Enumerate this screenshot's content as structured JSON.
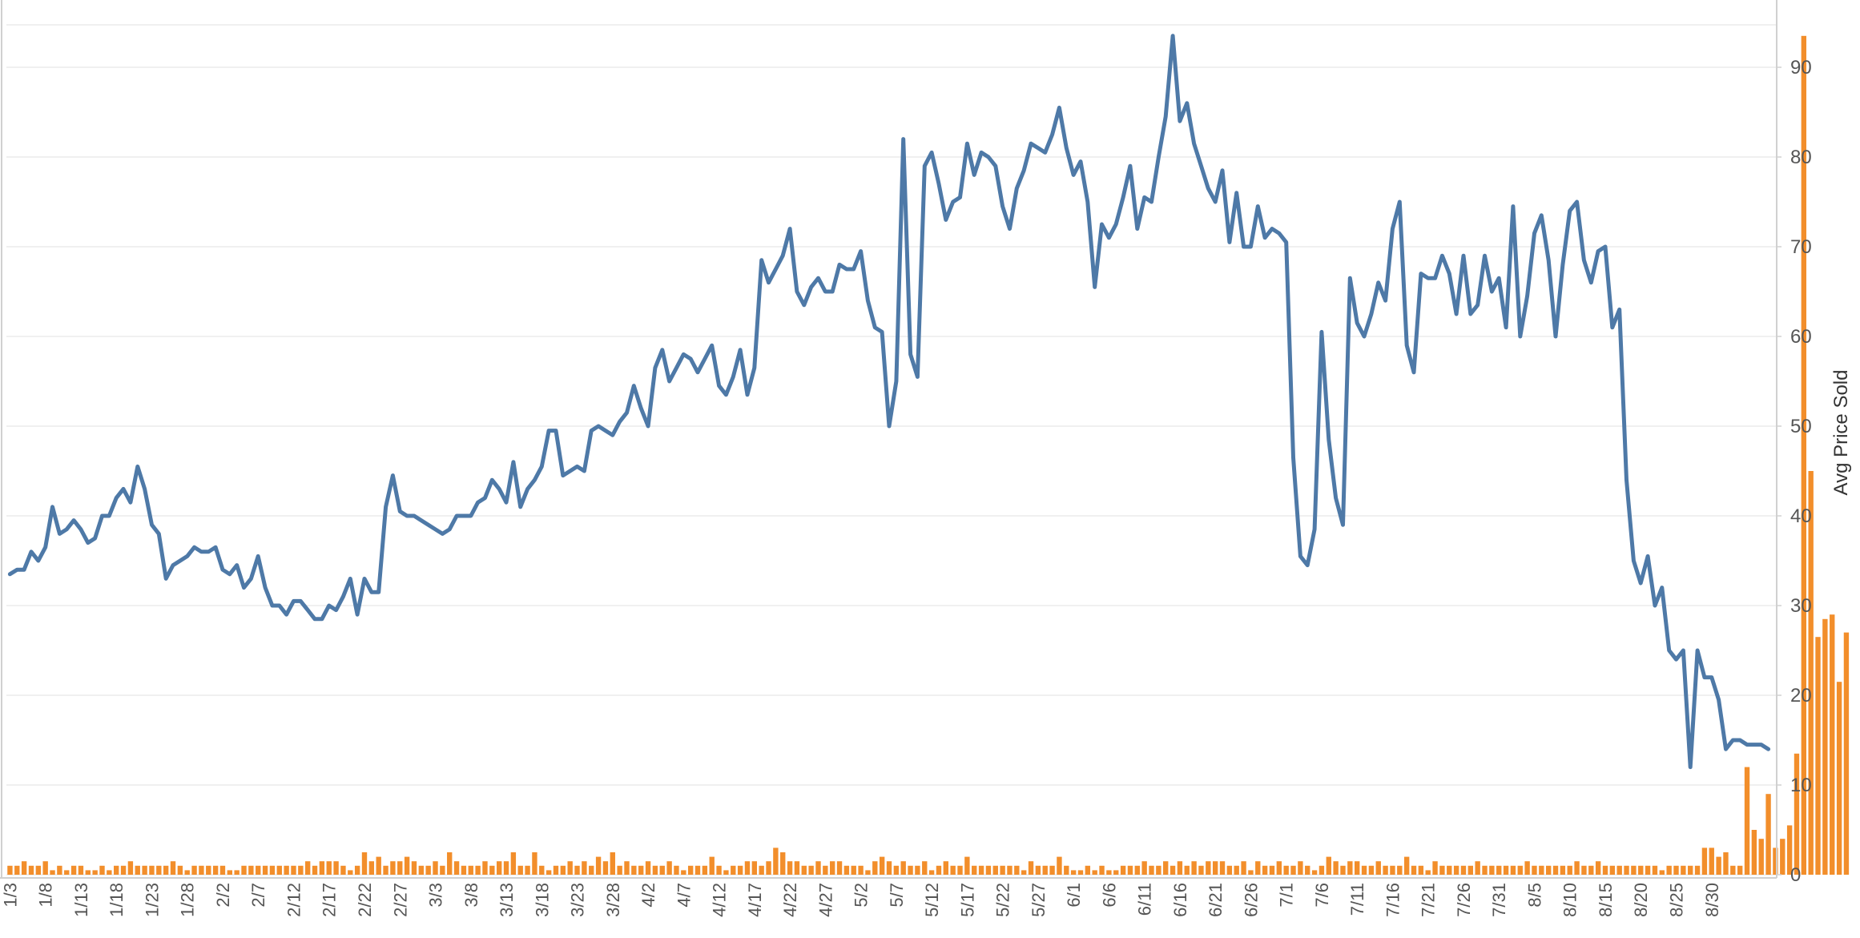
{
  "chart_data": {
    "type": "combo-bar-line",
    "title": "",
    "y_right": {
      "label": "Avg Price Sold",
      "min": 0,
      "max": 100,
      "ticks": [
        0,
        10,
        20,
        30,
        40,
        50,
        60,
        70,
        80,
        90
      ]
    },
    "x_tick_labels": [
      "1/3",
      "1/8",
      "1/13",
      "1/18",
      "1/23",
      "1/28",
      "2/2",
      "2/7",
      "2/12",
      "2/17",
      "2/22",
      "2/27",
      "3/3",
      "3/8",
      "3/13",
      "3/18",
      "3/23",
      "3/28",
      "4/2",
      "4/7",
      "4/12",
      "4/17",
      "4/22",
      "4/27",
      "5/2",
      "5/7",
      "5/12",
      "5/17",
      "5/22",
      "5/27",
      "6/1",
      "6/6",
      "6/11",
      "6/16",
      "6/21",
      "6/26",
      "7/1",
      "7/6",
      "7/11",
      "7/16",
      "7/21",
      "7/26",
      "7/31",
      "8/5",
      "8/10",
      "8/15",
      "8/20",
      "8/25",
      "8/30"
    ],
    "grid": true,
    "colors": {
      "line": "#4e79a7",
      "bars": "#f28e2b",
      "grid": "#ececec",
      "axis": "#d0d0d0"
    },
    "series": [
      {
        "kind": "line",
        "axis": "right",
        "values": [
          33.5,
          34,
          34,
          36,
          35,
          36.5,
          41,
          38,
          38.5,
          39.5,
          38.5,
          37,
          37.5,
          40,
          40,
          42,
          43,
          41.5,
          45.5,
          43,
          39,
          38,
          33,
          34.5,
          35,
          35.5,
          36.5,
          36,
          36,
          36.5,
          34,
          33.5,
          34.5,
          32,
          33,
          35.5,
          32,
          30,
          30,
          29,
          30.5,
          30.5,
          29.5,
          28.5,
          28.5,
          30,
          29.5,
          31,
          33,
          29,
          33,
          31.5,
          31.5,
          41,
          44.5,
          40.5,
          40,
          40,
          39.5,
          39,
          38.5,
          38,
          38.5,
          40,
          40,
          40,
          41.5,
          42,
          44,
          43,
          41.5,
          46,
          41,
          43,
          44,
          45.5,
          49.5,
          49.5,
          44.5,
          45,
          45.5,
          45,
          49.5,
          50,
          49.5,
          49,
          50.5,
          51.5,
          54.5,
          52,
          50,
          56.5,
          58.5,
          55,
          56.5,
          58,
          57.5,
          56,
          57.5,
          59,
          54.5,
          53.5,
          55.5,
          58.5,
          53.5,
          56.5,
          68.5,
          66,
          67.5,
          69,
          72,
          65,
          63.5,
          65.5,
          66.5,
          65,
          65,
          68,
          67.5,
          67.5,
          69.5,
          64,
          61,
          60.5,
          50,
          55,
          82,
          58,
          55.5,
          79,
          80.5,
          77,
          73,
          75,
          75.5,
          81.5,
          78,
          80.5,
          80,
          79,
          74.5,
          72,
          76.5,
          78.5,
          81.5,
          81,
          80.5,
          82.5,
          85.5,
          81,
          78,
          79.5,
          75,
          65.5,
          72.5,
          71,
          72.5,
          75.5,
          79,
          72,
          75.5,
          75,
          80,
          84.5,
          93.5,
          84,
          86,
          81.5,
          79,
          76.5,
          75,
          78.5,
          70.5,
          76,
          70,
          70,
          74.5,
          71,
          72,
          71.5,
          70.5,
          46.5,
          35.5,
          34.5,
          38.5,
          60.5,
          48.5,
          42,
          39,
          66.5,
          61.5,
          60,
          62.5,
          66,
          64,
          72,
          75,
          59,
          56,
          67,
          66.5,
          66.5,
          69,
          67,
          62.5,
          69,
          62.5,
          63.5,
          69,
          65,
          66.5,
          61,
          74.5,
          60,
          64.5,
          71.5,
          73.5,
          68.5,
          60,
          68,
          74,
          75,
          68.5,
          66,
          69.5,
          70,
          61,
          63,
          44,
          35,
          32.5,
          35.5,
          30,
          32,
          25,
          24,
          25,
          12,
          25,
          22,
          22,
          19.5,
          14,
          15,
          15,
          14.5,
          14.5,
          14.5,
          14
        ]
      },
      {
        "kind": "bar",
        "axis": "right",
        "values": [
          1,
          1,
          1.5,
          1,
          1,
          1.5,
          0.5,
          1,
          0.5,
          1,
          1,
          0.5,
          0.5,
          1,
          0.5,
          1,
          1,
          1.5,
          1,
          1,
          1,
          1,
          1,
          1.5,
          1,
          0.5,
          1,
          1,
          1,
          1,
          1,
          0.5,
          0.5,
          1,
          1,
          1,
          1,
          1,
          1,
          1,
          1,
          1,
          1.5,
          1,
          1.5,
          1.5,
          1.5,
          1,
          0.5,
          1,
          2.5,
          1.5,
          2,
          1,
          1.5,
          1.5,
          2,
          1.5,
          1,
          1,
          1.5,
          1,
          2.5,
          1.5,
          1,
          1,
          1,
          1.5,
          1,
          1.5,
          1.5,
          2.5,
          1,
          1,
          2.5,
          1,
          0.5,
          1,
          1,
          1.5,
          1,
          1.5,
          1,
          2,
          1.5,
          2.5,
          1,
          1.5,
          1,
          1,
          1.5,
          1,
          1,
          1.5,
          1,
          0.5,
          1,
          1,
          1,
          2,
          1,
          0.5,
          1,
          1,
          1.5,
          1.5,
          1,
          1.5,
          3,
          2.5,
          1.5,
          1.5,
          1,
          1,
          1.5,
          1,
          1.5,
          1.5,
          1,
          1,
          1,
          0.5,
          1.5,
          2,
          1.5,
          1,
          1.5,
          1,
          1,
          1.5,
          0.5,
          1,
          1.5,
          1,
          1,
          2,
          1,
          1,
          1,
          1,
          1,
          1,
          1,
          0.5,
          1.5,
          1,
          1,
          1,
          2,
          1,
          0.5,
          0.5,
          1,
          0.5,
          1,
          0.5,
          0.5,
          1,
          1,
          1,
          1.5,
          1,
          1,
          1.5,
          1,
          1.5,
          1,
          1.5,
          1,
          1.5,
          1.5,
          1.5,
          1,
          1,
          1.5,
          0.5,
          1.5,
          1,
          1,
          1.5,
          1,
          1,
          1.5,
          1,
          0.5,
          1,
          2,
          1.5,
          1,
          1.5,
          1.5,
          1,
          1,
          1.5,
          1,
          1,
          1,
          2,
          1,
          1,
          0.5,
          1.5,
          1,
          1,
          1,
          1,
          1,
          1.5,
          1,
          1,
          1,
          1,
          1,
          1,
          1.5,
          1,
          1,
          1,
          1,
          1,
          1,
          1.5,
          1,
          1,
          1.5,
          1,
          1,
          1,
          1,
          1,
          1,
          1,
          1,
          0.5,
          1,
          1,
          1,
          1,
          1,
          3,
          3,
          2,
          2.5,
          1,
          1,
          12,
          5,
          4,
          9,
          3,
          4,
          5.5,
          13.5,
          93.5,
          45,
          26.5,
          28.5,
          29,
          21.5,
          27
        ]
      }
    ]
  }
}
